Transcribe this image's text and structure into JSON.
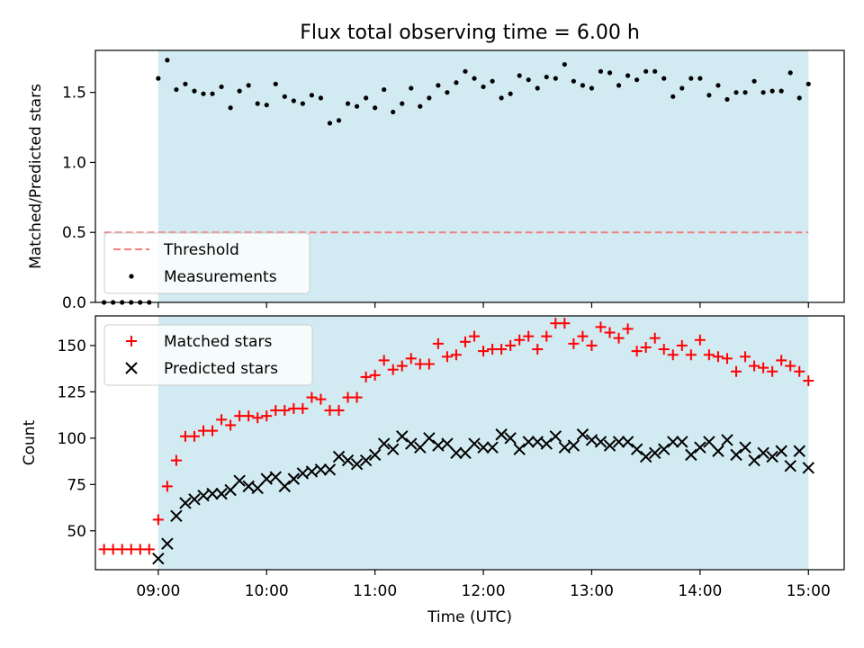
{
  "chart_data": [
    {
      "type": "scatter",
      "title": "Flux total observing time = 6.00 h",
      "ylabel": "Matched/Predicted stars",
      "xlabel": "",
      "xlim": [
        8.42,
        15.33
      ],
      "ylim": [
        0.0,
        1.8
      ],
      "yticks": [
        0.0,
        0.5,
        1.0,
        1.5
      ],
      "yticklabels": [
        "0.0",
        "0.5",
        "1.0",
        "1.5"
      ],
      "shaded_span": {
        "start": 9.0,
        "end": 15.0,
        "color": "#add8e6"
      },
      "threshold": {
        "label": "Threshold",
        "value": 0.5,
        "x_start": 8.5,
        "x_end": 15.0,
        "color": "#f08080"
      },
      "legend": {
        "position": "lower-left",
        "entries": [
          "Threshold",
          "Measurements"
        ]
      },
      "series": [
        {
          "name": "Measurements",
          "marker": "dot",
          "color": "#000000",
          "x": [
            8.5,
            8.5833,
            8.6667,
            8.75,
            8.8333,
            8.9167,
            9.0,
            9.0833,
            9.1667,
            9.25,
            9.3333,
            9.4167,
            9.5,
            9.5833,
            9.6667,
            9.75,
            9.8333,
            9.9167,
            10.0,
            10.0833,
            10.1667,
            10.25,
            10.3333,
            10.4167,
            10.5,
            10.5833,
            10.6667,
            10.75,
            10.8333,
            10.9167,
            11.0,
            11.0833,
            11.1667,
            11.25,
            11.3333,
            11.4167,
            11.5,
            11.5833,
            11.6667,
            11.75,
            11.8333,
            11.9167,
            12.0,
            12.0833,
            12.1667,
            12.25,
            12.3333,
            12.4167,
            12.5,
            12.5833,
            12.6667,
            12.75,
            12.8333,
            12.9167,
            13.0,
            13.0833,
            13.1667,
            13.25,
            13.3333,
            13.4167,
            13.5,
            13.5833,
            13.6667,
            13.75,
            13.8333,
            13.9167,
            14.0,
            14.0833,
            14.1667,
            14.25,
            14.3333,
            14.4167,
            14.5,
            14.5833,
            14.6667,
            14.75,
            14.8333,
            14.9167,
            15.0
          ],
          "y": [
            0.0,
            0.0,
            0.0,
            0.0,
            0.0,
            0.0,
            1.6,
            1.73,
            1.52,
            1.56,
            1.51,
            1.49,
            1.49,
            1.54,
            1.39,
            1.51,
            1.55,
            1.42,
            1.41,
            1.56,
            1.47,
            1.44,
            1.42,
            1.48,
            1.46,
            1.28,
            1.3,
            1.42,
            1.4,
            1.46,
            1.39,
            1.52,
            1.36,
            1.42,
            1.53,
            1.4,
            1.46,
            1.55,
            1.5,
            1.57,
            1.65,
            1.6,
            1.54,
            1.58,
            1.46,
            1.49,
            1.62,
            1.59,
            1.53,
            1.61,
            1.6,
            1.7,
            1.58,
            1.55,
            1.53,
            1.65,
            1.64,
            1.55,
            1.62,
            1.59,
            1.65,
            1.65,
            1.6,
            1.47,
            1.53,
            1.6,
            1.6,
            1.48,
            1.55,
            1.45,
            1.5,
            1.5,
            1.58,
            1.5,
            1.51,
            1.51,
            1.64,
            1.46,
            1.56
          ]
        }
      ]
    },
    {
      "type": "scatter",
      "title": "",
      "ylabel": "Count",
      "xlabel": "Time (UTC)",
      "xlim": [
        8.42,
        15.33
      ],
      "ylim": [
        29,
        166
      ],
      "yticks": [
        50,
        75,
        100,
        125,
        150
      ],
      "yticklabels": [
        "50",
        "75",
        "100",
        "125",
        "150"
      ],
      "xticks": [
        9,
        10,
        11,
        12,
        13,
        14,
        15
      ],
      "xticklabels": [
        "09:00",
        "10:00",
        "11:00",
        "12:00",
        "13:00",
        "14:00",
        "15:00"
      ],
      "shaded_span": {
        "start": 9.0,
        "end": 15.0,
        "color": "#add8e6"
      },
      "legend": {
        "position": "top-left",
        "entries": [
          "Matched stars",
          "Predicted stars"
        ]
      },
      "series": [
        {
          "name": "Matched stars",
          "marker": "plus",
          "color": "#ff0000",
          "x": [
            8.5,
            8.5833,
            8.6667,
            8.75,
            8.8333,
            8.9167,
            9.0,
            9.0833,
            9.1667,
            9.25,
            9.3333,
            9.4167,
            9.5,
            9.5833,
            9.6667,
            9.75,
            9.8333,
            9.9167,
            10.0,
            10.0833,
            10.1667,
            10.25,
            10.3333,
            10.4167,
            10.5,
            10.5833,
            10.6667,
            10.75,
            10.8333,
            10.9167,
            11.0,
            11.0833,
            11.1667,
            11.25,
            11.3333,
            11.4167,
            11.5,
            11.5833,
            11.6667,
            11.75,
            11.8333,
            11.9167,
            12.0,
            12.0833,
            12.1667,
            12.25,
            12.3333,
            12.4167,
            12.5,
            12.5833,
            12.6667,
            12.75,
            12.8333,
            12.9167,
            13.0,
            13.0833,
            13.1667,
            13.25,
            13.3333,
            13.4167,
            13.5,
            13.5833,
            13.6667,
            13.75,
            13.8333,
            13.9167,
            14.0,
            14.0833,
            14.1667,
            14.25,
            14.3333,
            14.4167,
            14.5,
            14.5833,
            14.6667,
            14.75,
            14.8333,
            14.9167,
            15.0
          ],
          "y": [
            40,
            40,
            40,
            40,
            40,
            40,
            56,
            74,
            88,
            101,
            101,
            104,
            104,
            110,
            107,
            112,
            112,
            111,
            112,
            115,
            115,
            116,
            116,
            122,
            121,
            115,
            115,
            122,
            122,
            133,
            134,
            142,
            137,
            139,
            143,
            140,
            140,
            151,
            144,
            145,
            152,
            155,
            147,
            148,
            148,
            150,
            153,
            155,
            148,
            155,
            162,
            162,
            151,
            155,
            150,
            160,
            157,
            154,
            159,
            147,
            149,
            154,
            148,
            145,
            150,
            145,
            153,
            145,
            144,
            143,
            136,
            144,
            139,
            138,
            136,
            142,
            139,
            136,
            131
          ]
        },
        {
          "name": "Predicted stars",
          "marker": "x",
          "color": "#000000",
          "x": [
            9.0,
            9.0833,
            9.1667,
            9.25,
            9.3333,
            9.4167,
            9.5,
            9.5833,
            9.6667,
            9.75,
            9.8333,
            9.9167,
            10.0,
            10.0833,
            10.1667,
            10.25,
            10.3333,
            10.4167,
            10.5,
            10.5833,
            10.6667,
            10.75,
            10.8333,
            10.9167,
            11.0,
            11.0833,
            11.1667,
            11.25,
            11.3333,
            11.4167,
            11.5,
            11.5833,
            11.6667,
            11.75,
            11.8333,
            11.9167,
            12.0,
            12.0833,
            12.1667,
            12.25,
            12.3333,
            12.4167,
            12.5,
            12.5833,
            12.6667,
            12.75,
            12.8333,
            12.9167,
            13.0,
            13.0833,
            13.1667,
            13.25,
            13.3333,
            13.4167,
            13.5,
            13.5833,
            13.6667,
            13.75,
            13.8333,
            13.9167,
            14.0,
            14.0833,
            14.1667,
            14.25,
            14.3333,
            14.4167,
            14.5,
            14.5833,
            14.6667,
            14.75,
            14.8333,
            14.9167,
            15.0
          ],
          "y": [
            35,
            43,
            58,
            65,
            67,
            69,
            70,
            70,
            72,
            77,
            74,
            73,
            78,
            79,
            74,
            78,
            81,
            82,
            83,
            83,
            90,
            88,
            86,
            88,
            91,
            97,
            94,
            101,
            97,
            95,
            100,
            96,
            97,
            92,
            92,
            97,
            95,
            95,
            102,
            100,
            94,
            98,
            98,
            97,
            101,
            95,
            96,
            102,
            99,
            98,
            96,
            98,
            98,
            94,
            90,
            92,
            94,
            98,
            98,
            91,
            95,
            98,
            93,
            99,
            91,
            95,
            88,
            92,
            90,
            93,
            85,
            93,
            84
          ]
        }
      ]
    }
  ]
}
